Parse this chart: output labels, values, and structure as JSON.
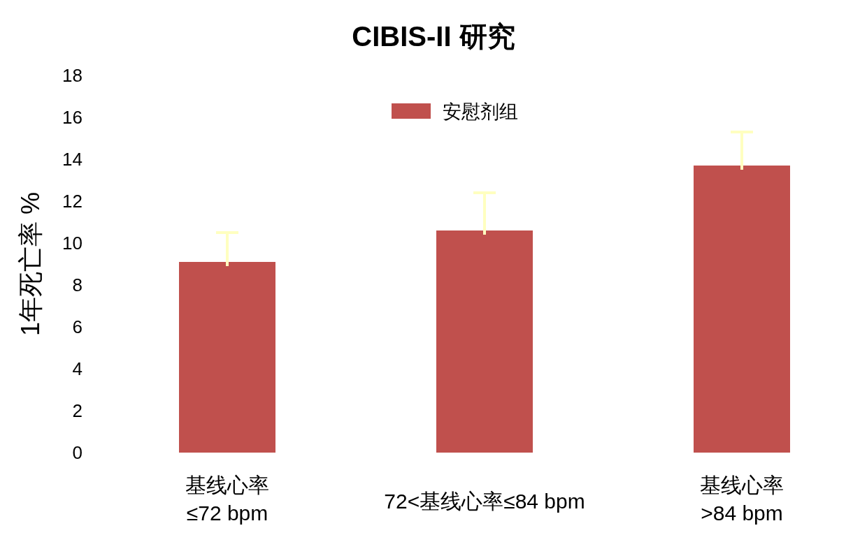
{
  "chart_data": {
    "type": "bar",
    "title": "CIBIS-II 研究",
    "ylabel": "1年死亡率 %",
    "categories": [
      "基线心率\n≤72 bpm",
      "72<基线心率≤84 bpm",
      "基线心率\n>84 bpm"
    ],
    "series": [
      {
        "name": "安慰剂组",
        "color": "#c0504d",
        "values": [
          9.1,
          10.6,
          13.7
        ],
        "errors": [
          [
            9.1,
            10.5
          ],
          [
            10.6,
            12.4
          ],
          [
            13.7,
            15.3
          ]
        ]
      }
    ],
    "ylim": [
      0,
      18
    ],
    "yticks": [
      0,
      2,
      4,
      6,
      8,
      10,
      12,
      14,
      16,
      18
    ],
    "legend": "top",
    "grid": false
  }
}
